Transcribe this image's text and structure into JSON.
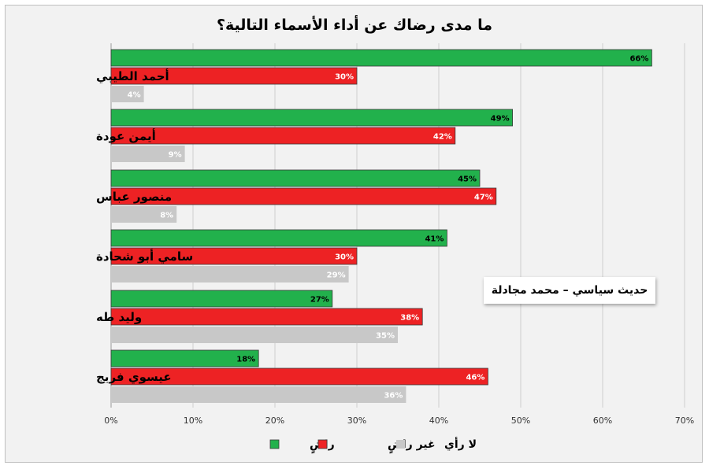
{
  "chart_data": {
    "type": "bar",
    "orientation": "horizontal",
    "title": "ما مدى رضاك عن أداء الأسماء التالية؟",
    "categories": [
      "أحمد الطيبي",
      "أيمن عودة",
      "منصور عباس",
      "سامي أبو شحادة",
      "وليد طه",
      "عيسوي فريج"
    ],
    "series": [
      {
        "name": "راضٍ",
        "color": "#22b14c",
        "values": [
          66,
          49,
          45,
          41,
          27,
          18
        ],
        "labels": [
          "66%",
          "49%",
          "45%",
          "41%",
          "27%",
          "18%"
        ],
        "label_color": "#000000"
      },
      {
        "name": "غير راضٍ",
        "color": "#ed2224",
        "values": [
          30,
          42,
          47,
          30,
          38,
          46
        ],
        "labels": [
          "30%",
          "42%",
          "47%",
          "30%",
          "38%",
          "46%"
        ],
        "label_color": "#ffffff"
      },
      {
        "name": "لا رأي",
        "color": "#c8c8c8",
        "values": [
          4,
          9,
          8,
          29,
          35,
          36
        ],
        "labels": [
          "4%",
          "9%",
          "8%",
          "29%",
          "35%",
          "36%"
        ],
        "label_color": "#ffffff"
      }
    ],
    "xlim": [
      0,
      70
    ],
    "x_ticks": [
      0,
      10,
      20,
      30,
      40,
      50,
      60,
      70
    ],
    "x_tick_labels": [
      "0%",
      "10%",
      "20%",
      "30%",
      "40%",
      "50%",
      "60%",
      "70%"
    ],
    "grid": true,
    "legend_position": "bottom"
  },
  "source_note": "حديث سياسي – محمد مجادلة"
}
